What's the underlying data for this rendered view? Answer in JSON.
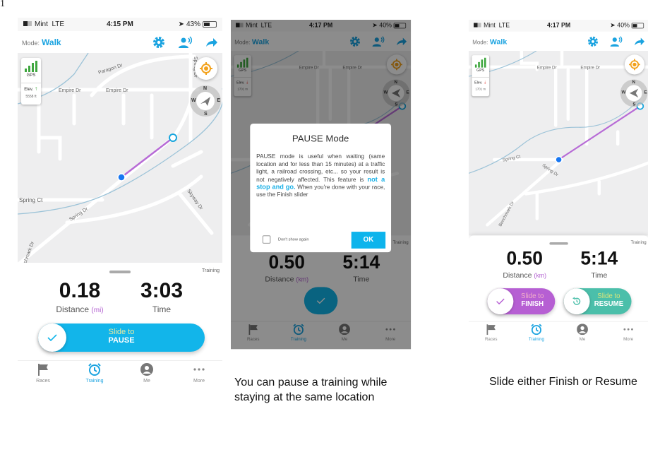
{
  "page_marker": "1",
  "colors": {
    "accent": "#1aa3e0",
    "pause": "#12b5ea",
    "finish": "#b65fd3",
    "resume": "#4bbfaa",
    "route": "#b76bd6",
    "gps": "#3ea63e",
    "elev_up": "#3ea63e",
    "elev_down": "#e0302a"
  },
  "screens": [
    {
      "status": {
        "carrier": "Mint",
        "network": "LTE",
        "time": "4:15 PM",
        "battery": "43%"
      },
      "header": {
        "mode_label": "Mode:",
        "mode_value": "Walk",
        "icons": [
          "gear-icon",
          "voice-coach-icon",
          "share-icon"
        ]
      },
      "map": {
        "gps_label": "GPS",
        "elev_label": "Elev.",
        "elev_value": "5558 ft",
        "elev_trend": "up",
        "compass": {
          "n": "N",
          "e": "E",
          "s": "S",
          "w": "W"
        },
        "streets": [
          "Paragon Dr",
          "Spring Dr",
          "Empire Dr",
          "Empire Dr",
          "Spring Ct",
          "Spring Dr",
          "Skyway Dr",
          "Benchmark Dr"
        ]
      },
      "panel": {
        "tag": "Training",
        "distance": "0.18",
        "distance_label": "Distance",
        "distance_unit": "(mi)",
        "time": "3:03",
        "time_label": "Time",
        "slider": {
          "line1": "Slide to",
          "line2": "PAUSE"
        }
      },
      "tabs": [
        {
          "label": "Races"
        },
        {
          "label": "Training",
          "active": true
        },
        {
          "label": "Me"
        },
        {
          "label": "More"
        }
      ]
    },
    {
      "status": {
        "carrier": "Mint",
        "network": "LTE",
        "time": "4:17 PM",
        "battery": "40%"
      },
      "header": {
        "mode_label": "Mode:",
        "mode_value": "Walk"
      },
      "map": {
        "gps_label": "GPS",
        "elev_label": "Elev.",
        "elev_value": "1701 m",
        "elev_trend": "down",
        "compass": {
          "n": "N",
          "e": "E",
          "s": "S",
          "w": "W"
        },
        "streets": [
          "Empire Dr",
          "Empire Dr"
        ]
      },
      "dialog": {
        "title": "PAUSE Mode",
        "body_before": "PAUSE mode is useful when waiting (same location and for less than 15 minutes) at a traffic light, a railroad crossing, etc... so your result is not negatively affected. This feature is ",
        "body_emphasis": "not a stop and go.",
        "body_after": " When you're done with your race, use the Finish slider",
        "checkbox_label": "Don't show again",
        "checkbox_checked": false,
        "ok_label": "OK"
      },
      "panel": {
        "tag": "Training",
        "distance": "0.50",
        "distance_label": "Distance",
        "distance_unit": "(km)",
        "time": "5:14",
        "time_label": "Time"
      },
      "tabs": [
        {
          "label": "Races"
        },
        {
          "label": "Training",
          "active": true
        },
        {
          "label": "Me"
        },
        {
          "label": "More"
        }
      ]
    },
    {
      "status": {
        "carrier": "Mint",
        "network": "LTE",
        "time": "4:17 PM",
        "battery": "40%"
      },
      "header": {
        "mode_label": "Mode:",
        "mode_value": "Walk"
      },
      "map": {
        "gps_label": "GPS",
        "elev_label": "Elev.",
        "elev_value": "1701 m",
        "elev_trend": "down",
        "compass": {
          "n": "N",
          "e": "E",
          "s": "S",
          "w": "W"
        },
        "streets": [
          "Empire Dr",
          "Empire Dr",
          "Spring Ct",
          "Spring Dr",
          "Benchmark Dr"
        ]
      },
      "panel": {
        "tag": "Training",
        "distance": "0.50",
        "distance_label": "Distance",
        "distance_unit": "(km)",
        "time": "5:14",
        "time_label": "Time",
        "finish_slider": {
          "line1": "Slide to",
          "line2": "FINISH"
        },
        "resume_slider": {
          "line1": "Slide to",
          "line2": "RESUME"
        }
      },
      "tabs": [
        {
          "label": "Races"
        },
        {
          "label": "Training",
          "active": true
        },
        {
          "label": "Me"
        },
        {
          "label": "More"
        }
      ]
    }
  ],
  "captions": [
    {
      "lines": [
        "You can pause a training while",
        "staying at the same location"
      ]
    },
    {
      "lines": [
        "Slide either Finish or Resume"
      ]
    }
  ]
}
